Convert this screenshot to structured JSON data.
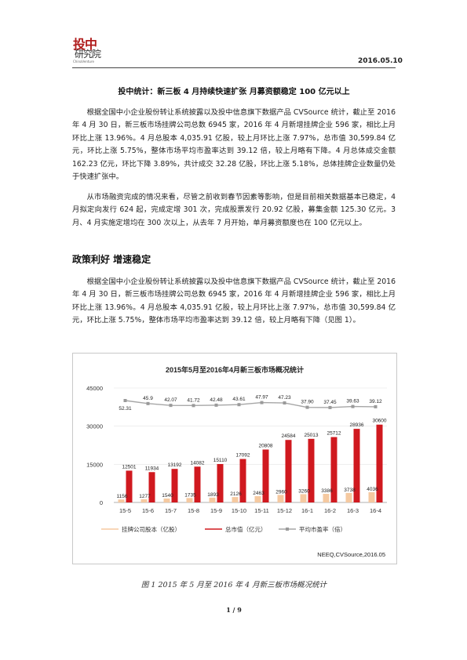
{
  "header": {
    "logo_line1": "投中",
    "logo_line2": "研究院",
    "logo_line3": "ChinaVenture",
    "date": "2016.05.10"
  },
  "article": {
    "title": "投中统计：新三板 4 月持续快速扩张  月募资额稳定 100 亿元以上",
    "para1": "根据全国中小企业股份转让系统披露以及投中信息旗下数据产品 CVSource 统计，截止至 2016 年 4 月 30 日，新三板市场挂牌公司总数 6945 家，2016 年 4 月新增挂牌企业 596 家，相比上月环比上涨 13.96%。4 月总股本 4,035.91 亿股，较上月环比上涨 7.97%，总市值 30,599.84 亿元，环比上涨 5.75%，整体市场平均市盈率达到 39.12 倍，较上月略有下降。4 月总体成交金额 162.23 亿元，环比下降 3.89%，共计成交 32.28 亿股，环比上涨 5.18%，总体挂牌企业数量仍处于快速扩张中。",
    "para2": "从市场融资完成的情况来看，尽管之前收到春节因素等影响，但是目前相关数据基本已稳定，4 月拟定向发行 624 起，完成定增 301 次，完成股票发行 20.92 亿股，募集金额 125.30 亿元。3 月、4 月实施定增均在 300 次以上，从去年 7 月开始，单月募资额度也在 100 亿元以上。",
    "section_title": "政策利好  增速稳定",
    "para3": "根据全国中小企业股份转让系统披露以及投中信息旗下数据产品 CVSource 统计，截止至 2016 年 4 月 30 日，新三板市场挂牌公司总数 6945 家，2016 年 4 月新增挂牌企业 596 家，相比上月环比上涨 13.96%。4 月总股本 4,035.91 亿股，较上月环比上涨 7.97%，总市值 30,599.84 亿元，环比上涨 5.75%，整体市场平均市盈率达到 39.12 倍，较上月略有下降（见图 1）。",
    "figure_caption": "图 1  2015 年 5 月至 2016 年 4 月新三板市场概况统计",
    "page_number": "1 / 9"
  },
  "chart_data": {
    "type": "bar",
    "title": "2015年5月至2016年4月新三板市场概况统计",
    "categories": [
      "15-5",
      "15-6",
      "15-7",
      "15-8",
      "15-9",
      "15-10",
      "15-11",
      "15-12",
      "16-1",
      "16-2",
      "16-3",
      "16-4"
    ],
    "series": [
      {
        "name": "挂牌公司股本（亿股）",
        "type": "bar",
        "color": "#f5c9a0",
        "values": [
          1156,
          1277,
          1540,
          1735,
          1893,
          2126,
          2463,
          2960,
          3260,
          3386,
          3738,
          4036
        ]
      },
      {
        "name": "总市值（亿元）",
        "type": "bar",
        "color": "#d0191f",
        "values": [
          12501,
          11934,
          13192,
          14082,
          15110,
          17092,
          20808,
          24584,
          25013,
          25712,
          28936,
          30600
        ]
      },
      {
        "name": "平均市盈率（倍）",
        "type": "line",
        "color": "#a6a6a6",
        "values": [
          52.31,
          45.9,
          42.07,
          41.72,
          42.48,
          43.61,
          47.97,
          47.23,
          37.9,
          37.45,
          39.63,
          39.12
        ],
        "labels": [
          "52.31",
          "45.9",
          "42.07",
          "41.72",
          "42.48",
          "43.61",
          "47.97",
          "47.23",
          "37.90",
          "37.45",
          "39.63",
          "39.12"
        ]
      }
    ],
    "ylim": [
      0,
      45000
    ],
    "yticks": [
      0,
      15000,
      30000,
      45000
    ],
    "source": "NEEQ,CVSource,2016.05",
    "legend_position": "bottom"
  }
}
